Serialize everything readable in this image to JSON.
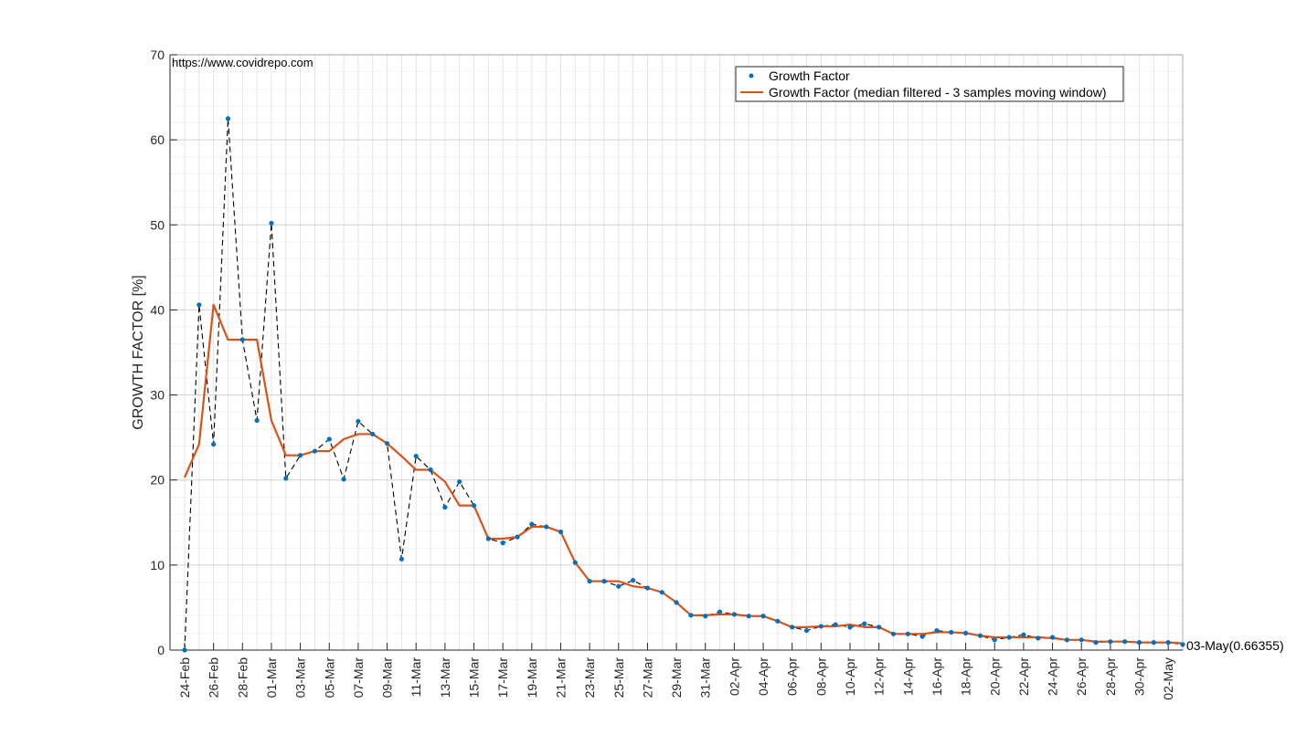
{
  "chart_data": {
    "type": "line",
    "title": "",
    "xlabel": "",
    "ylabel": "GROWTH FACTOR [%]",
    "ylim": [
      0,
      70
    ],
    "yticks": [
      0,
      10,
      20,
      30,
      40,
      50,
      60,
      70
    ],
    "grid": true,
    "legend_position": "top-right",
    "watermark": "https://www.covidrepo.com",
    "end_annotation": "03-May(0.66355)",
    "x": [
      "24-Feb",
      "25-Feb",
      "26-Feb",
      "27-Feb",
      "28-Feb",
      "29-Feb",
      "01-Mar",
      "02-Mar",
      "03-Mar",
      "04-Mar",
      "05-Mar",
      "06-Mar",
      "07-Mar",
      "08-Mar",
      "09-Mar",
      "10-Mar",
      "11-Mar",
      "12-Mar",
      "13-Mar",
      "14-Mar",
      "15-Mar",
      "16-Mar",
      "17-Mar",
      "18-Mar",
      "19-Mar",
      "20-Mar",
      "21-Mar",
      "22-Mar",
      "23-Mar",
      "24-Mar",
      "25-Mar",
      "26-Mar",
      "27-Mar",
      "28-Mar",
      "29-Mar",
      "30-Mar",
      "31-Mar",
      "01-Apr",
      "02-Apr",
      "03-Apr",
      "04-Apr",
      "05-Apr",
      "06-Apr",
      "07-Apr",
      "08-Apr",
      "09-Apr",
      "10-Apr",
      "11-Apr",
      "12-Apr",
      "13-Apr",
      "14-Apr",
      "15-Apr",
      "16-Apr",
      "17-Apr",
      "18-Apr",
      "19-Apr",
      "20-Apr",
      "21-Apr",
      "22-Apr",
      "23-Apr",
      "24-Apr",
      "25-Apr",
      "26-Apr",
      "27-Apr",
      "28-Apr",
      "29-Apr",
      "30-Apr",
      "01-May",
      "02-May",
      "03-May"
    ],
    "xtick_labels": [
      "24-Feb",
      "26-Feb",
      "28-Feb",
      "01-Mar",
      "03-Mar",
      "05-Mar",
      "07-Mar",
      "09-Mar",
      "11-Mar",
      "13-Mar",
      "15-Mar",
      "17-Mar",
      "19-Mar",
      "21-Mar",
      "23-Mar",
      "25-Mar",
      "27-Mar",
      "29-Mar",
      "31-Mar",
      "02-Apr",
      "04-Apr",
      "06-Apr",
      "08-Apr",
      "10-Apr",
      "12-Apr",
      "14-Apr",
      "16-Apr",
      "18-Apr",
      "20-Apr",
      "22-Apr",
      "24-Apr",
      "26-Apr",
      "28-Apr",
      "30-Apr",
      "02-May"
    ],
    "series": [
      {
        "name": "Growth Factor",
        "style": "dots-dashed",
        "color": "#0072BD",
        "connector_color": "#000000",
        "values": [
          0,
          40.6,
          24.2,
          62.5,
          36.5,
          27.0,
          50.2,
          20.2,
          22.9,
          23.4,
          24.8,
          20.1,
          26.9,
          25.4,
          24.3,
          10.7,
          22.8,
          21.2,
          16.8,
          19.8,
          17.0,
          13.1,
          12.6,
          13.3,
          14.8,
          14.5,
          13.9,
          10.3,
          8.1,
          8.1,
          7.5,
          8.2,
          7.3,
          6.8,
          5.6,
          4.1,
          4.0,
          4.5,
          4.2,
          4.0,
          4.0,
          3.4,
          2.7,
          2.3,
          2.8,
          3.0,
          2.7,
          3.1,
          2.7,
          1.9,
          1.9,
          1.6,
          2.3,
          2.1,
          2.0,
          1.7,
          1.2,
          1.5,
          1.8,
          1.4,
          1.5,
          1.2,
          1.2,
          0.9,
          1.0,
          1.0,
          0.9,
          0.9,
          0.9,
          0.66
        ]
      },
      {
        "name": "Growth Factor (median filtered - 3 samples moving window)",
        "style": "line",
        "color": "#D95319",
        "values": [
          20.3,
          24.2,
          40.6,
          36.5,
          36.5,
          36.5,
          27.0,
          22.9,
          22.9,
          23.4,
          23.4,
          24.8,
          25.4,
          25.4,
          24.3,
          22.8,
          21.2,
          21.2,
          19.8,
          17.0,
          17.0,
          13.1,
          13.1,
          13.3,
          14.5,
          14.5,
          13.9,
          10.3,
          8.1,
          8.1,
          8.1,
          7.5,
          7.3,
          6.8,
          5.6,
          4.1,
          4.1,
          4.2,
          4.2,
          4.0,
          4.0,
          3.4,
          2.7,
          2.7,
          2.8,
          2.8,
          3.0,
          2.7,
          2.7,
          1.9,
          1.9,
          1.9,
          2.1,
          2.1,
          2.0,
          1.7,
          1.5,
          1.5,
          1.5,
          1.5,
          1.4,
          1.2,
          1.2,
          1.0,
          1.0,
          1.0,
          0.9,
          0.9,
          0.9,
          0.8
        ]
      }
    ]
  }
}
